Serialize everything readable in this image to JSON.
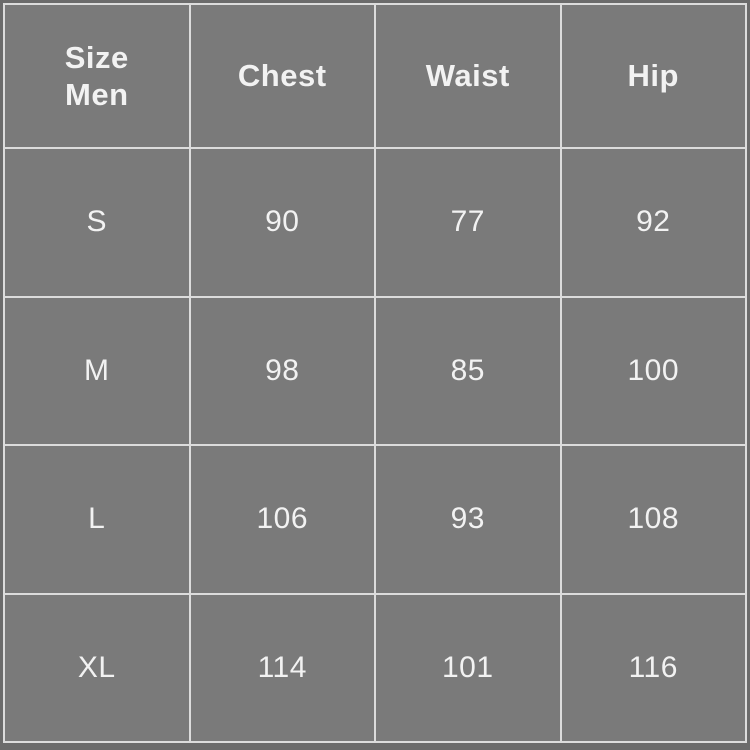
{
  "header": {
    "size_line1": "Size",
    "size_line2": "Men",
    "chest": "Chest",
    "waist": "Waist",
    "hip": "Hip"
  },
  "chart_data": {
    "type": "table",
    "columns": [
      "Size Men",
      "Chest",
      "Waist",
      "Hip"
    ],
    "rows": [
      {
        "size": "S",
        "chest": 90,
        "waist": 77,
        "hip": 92
      },
      {
        "size": "M",
        "chest": 98,
        "waist": 85,
        "hip": 100
      },
      {
        "size": "L",
        "chest": 106,
        "waist": 93,
        "hip": 108
      },
      {
        "size": "XL",
        "chest": 114,
        "waist": 101,
        "hip": 116
      }
    ],
    "layout_hints": {
      "header_row": true,
      "grid": "on",
      "rows_count": 5,
      "columns_count": 4
    }
  },
  "colors": {
    "cell_background": "#7a7a7a",
    "grid_line": "#dcdcdc",
    "text": "#f2f2f2",
    "outer_edge": "#6b6b6b"
  }
}
